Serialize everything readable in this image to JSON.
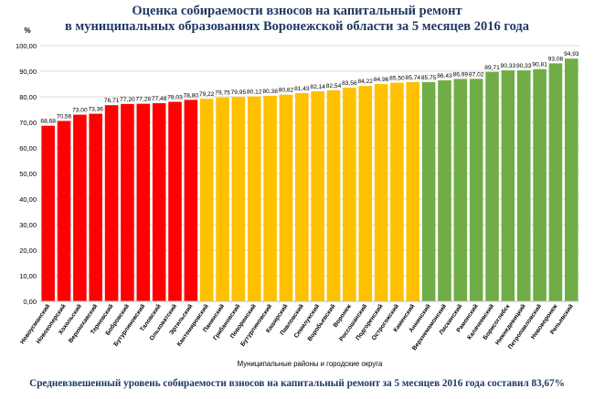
{
  "title_lines": [
    "Оценка собираемости взносов на капитальный ремонт",
    "в муниципальных образованиях Воронежской области за 5 месяцев 2016 года"
  ],
  "footer": "Средневзвешенный уровень собираемости взносов на капитальный ремонт за 5 месяцев 2016 года составил 83,67%",
  "colors": {
    "title": "#1f3864",
    "footer": "#1f3864",
    "red": "#ff0000",
    "yellow": "#ffc000",
    "green": "#70ad47",
    "grid": "#d9d9d9",
    "text": "#000000"
  },
  "chart_data": {
    "type": "bar",
    "ylabel": "%",
    "xlabel": "Муниципальные районы и городские округа",
    "ylim": [
      0,
      100
    ],
    "ytick_labels": [
      "0,00",
      "10,00",
      "20,00",
      "30,00",
      "40,00",
      "50,00",
      "60,00",
      "70,00",
      "80,00",
      "90,00",
      "100,00"
    ],
    "grid": true,
    "categories": [
      "Новоусманский",
      "Новохоперский",
      "Хохольский",
      "Верхнехавский",
      "Терновский",
      "Бобровский",
      "Бутурлиновский",
      "Таловский",
      "Ольховатский",
      "Эртильский",
      "Кантемировский",
      "Панинский",
      "Грибановский",
      "Поворинский",
      "Бутурлиновский",
      "Каширский",
      "Павловский",
      "Семилукский",
      "Воробьевский",
      "Воронеж",
      "Россошанский",
      "Подгоренский",
      "Острогожский",
      "Каменский",
      "Аннинский",
      "Верхнемамонский",
      "Лискинский",
      "Рамонский",
      "Калачеевский",
      "Борисоглебск",
      "Нижнедевицкий",
      "Петропавловский",
      "Нововоронеж",
      "Репьевский"
    ],
    "values": [
      68.68,
      70.56,
      73.0,
      73.36,
      76.71,
      77.2,
      77.28,
      77.48,
      78.03,
      78.8,
      79.22,
      79.75,
      79.95,
      80.12,
      80.38,
      80.82,
      81.43,
      82.14,
      82.54,
      83.56,
      84.22,
      84.96,
      85.5,
      85.74,
      85.75,
      86.43,
      86.99,
      87.02,
      89.71,
      90.33,
      90.33,
      90.81,
      93.08,
      94.93
    ],
    "value_labels": [
      "68,68",
      "70,56",
      "73,00",
      "73,36",
      "76,71",
      "77,20",
      "77,28",
      "77,48",
      "78,03",
      "78,80",
      "79,22",
      "79,75",
      "79,95",
      "80,12",
      "80,38",
      "80,82",
      "81,43",
      "82,14",
      "82,54",
      "83,56",
      "84,22",
      "84,96",
      "85,50",
      "85,74",
      "85,75",
      "86,43",
      "86,99",
      "87,02",
      "89,71",
      "90,33",
      "90,33",
      "90,81",
      "93,08",
      "94,93"
    ],
    "bar_colors": [
      "red",
      "red",
      "red",
      "red",
      "red",
      "red",
      "red",
      "red",
      "red",
      "red",
      "yellow",
      "yellow",
      "yellow",
      "yellow",
      "yellow",
      "yellow",
      "yellow",
      "yellow",
      "yellow",
      "yellow",
      "yellow",
      "yellow",
      "yellow",
      "yellow",
      "green",
      "green",
      "green",
      "green",
      "green",
      "green",
      "green",
      "green",
      "green",
      "green"
    ]
  }
}
